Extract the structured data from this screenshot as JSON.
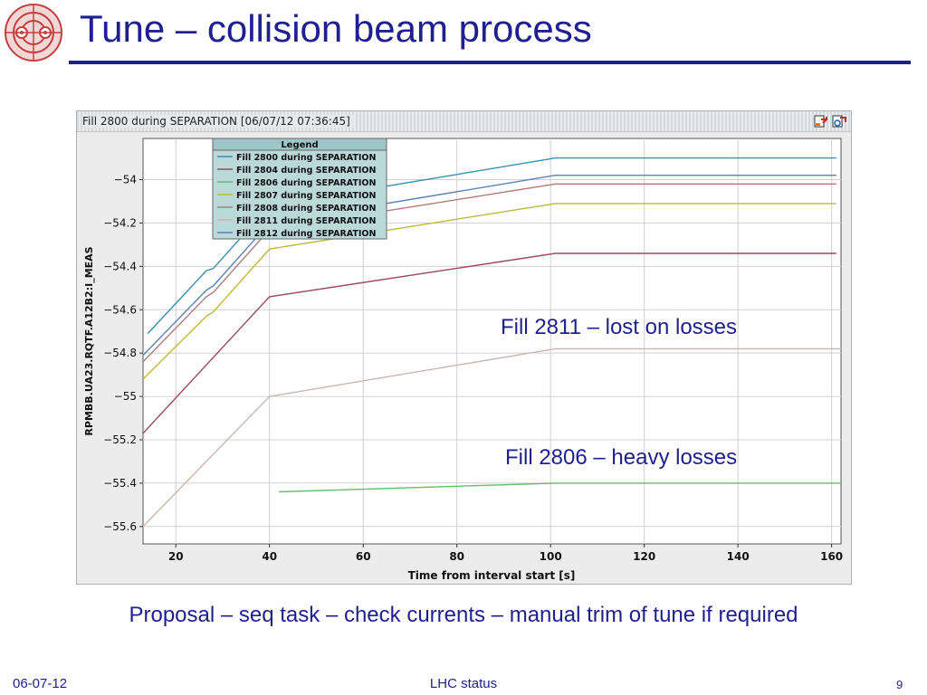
{
  "slide": {
    "title": "Tune – collision beam process",
    "proposal": "Proposal – seq task – check currents – manual trim of tune if required",
    "footer": {
      "date": "06-07-12",
      "center": "LHC status",
      "page": "9"
    }
  },
  "chart_window": {
    "header": "Fill 2800 during SEPARATION  [06/07/12 07:36:45]",
    "icons": [
      "export-icon",
      "settings-icon"
    ]
  },
  "annotations": {
    "lost_on_losses": "Fill 2811 – lost on losses",
    "heavy_losses": "Fill 2806 – heavy losses"
  },
  "chart_data": {
    "type": "line",
    "title": "",
    "xlabel": "Time from interval start [s]",
    "ylabel": "RPMBB.UA23.RQTF.A12B2:I_MEAS",
    "xlim": [
      13,
      162
    ],
    "ylim": [
      -55.68,
      -53.81
    ],
    "xticks": [
      20,
      40,
      60,
      80,
      100,
      120,
      140,
      160
    ],
    "yticks": [
      -54,
      -54.2,
      -54.4,
      -54.6,
      -54.8,
      -55,
      -55.2,
      -55.4,
      -55.6
    ],
    "grid": true,
    "legend": {
      "title": "Legend",
      "placement": "top-left"
    },
    "series": [
      {
        "name": "Fill 2800 during SEPARATION",
        "color": "#3b8fb0",
        "points": [
          [
            14,
            -54.71
          ],
          [
            26.5,
            -54.42
          ],
          [
            28,
            -54.41
          ],
          [
            40,
            -54.12
          ],
          [
            101,
            -53.9
          ],
          [
            161,
            -53.9
          ]
        ]
      },
      {
        "name": "Fill 2804 during SEPARATION",
        "color": "#9a4a62",
        "points": [
          [
            13,
            -55.17
          ],
          [
            40,
            -54.54
          ],
          [
            101,
            -54.34
          ],
          [
            161,
            -54.34
          ]
        ]
      },
      {
        "name": "Fill 2806 during SEPARATION",
        "color": "#5fbf6a",
        "points": [
          [
            42,
            -55.44
          ],
          [
            101,
            -55.4
          ],
          [
            163,
            -55.4
          ]
        ]
      },
      {
        "name": "Fill 2807 during SEPARATION",
        "color": "#c0b83a",
        "points": [
          [
            13,
            -54.92
          ],
          [
            26.5,
            -54.63
          ],
          [
            28,
            -54.61
          ],
          [
            40,
            -54.32
          ],
          [
            101,
            -54.11
          ],
          [
            161,
            -54.11
          ]
        ]
      },
      {
        "name": "Fill 2808 during SEPARATION",
        "color": "#b07a7a",
        "points": [
          [
            13,
            -54.84
          ],
          [
            26.5,
            -54.54
          ],
          [
            28,
            -54.52
          ],
          [
            40,
            -54.23
          ],
          [
            101,
            -54.02
          ],
          [
            161,
            -54.02
          ]
        ]
      },
      {
        "name": "Fill 2811 during SEPARATION",
        "color": "#c9b6ae",
        "points": [
          [
            13,
            -55.6
          ],
          [
            40,
            -55.0
          ],
          [
            101,
            -54.78
          ],
          [
            163,
            -54.78
          ]
        ]
      },
      {
        "name": "Fill 2812 during SEPARATION",
        "color": "#5b83b8",
        "points": [
          [
            13,
            -54.81
          ],
          [
            26.5,
            -54.51
          ],
          [
            28,
            -54.49
          ],
          [
            40,
            -54.2
          ],
          [
            101,
            -53.98
          ],
          [
            161,
            -53.98
          ]
        ]
      }
    ]
  }
}
